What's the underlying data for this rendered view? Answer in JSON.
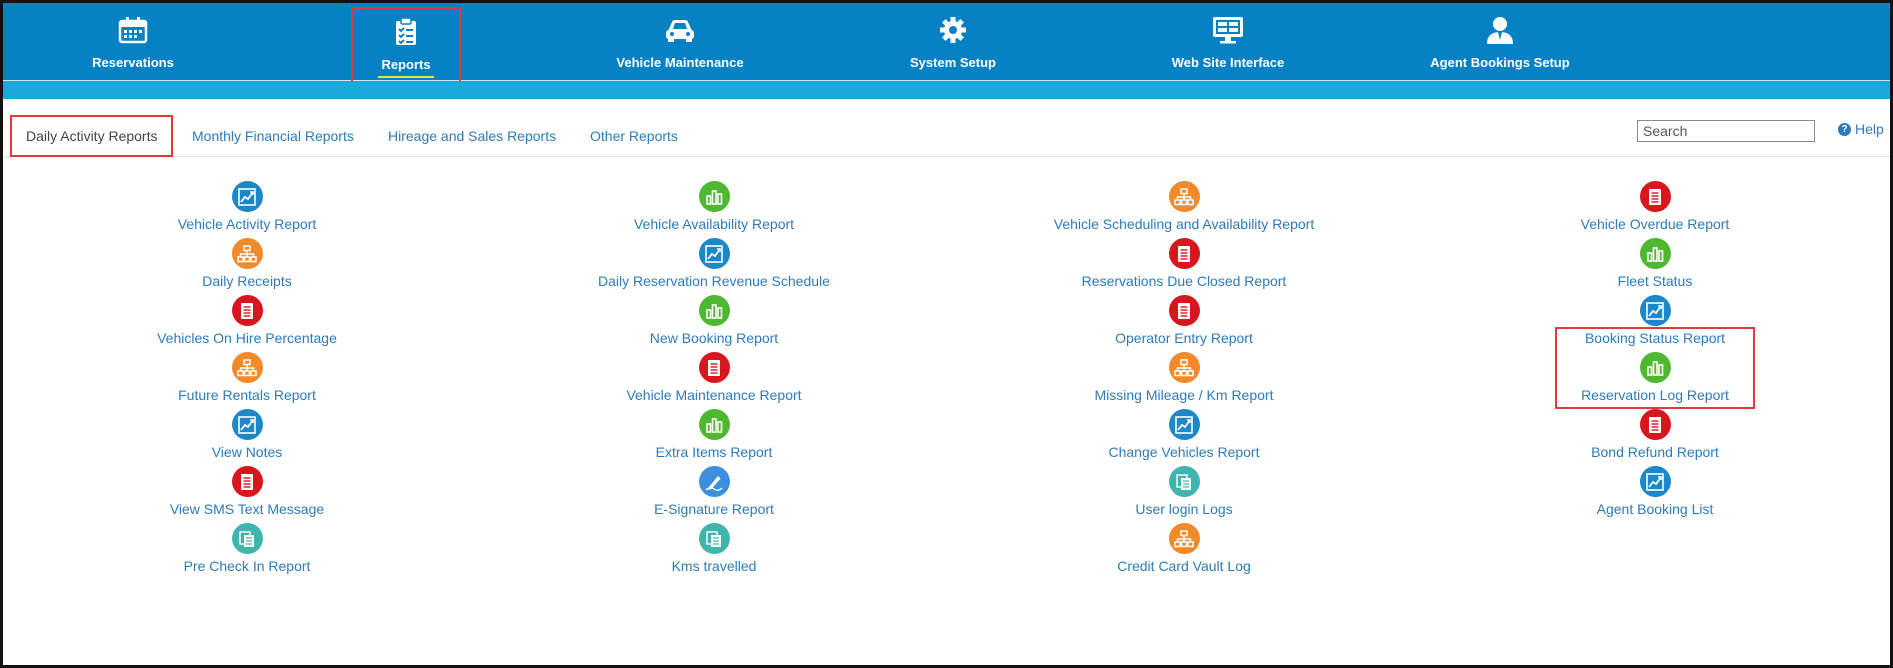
{
  "nav": {
    "items": [
      {
        "label": "Reservations",
        "icon": "calendar-icon",
        "active": false
      },
      {
        "label": "Reports",
        "icon": "checklist-icon",
        "active": true
      },
      {
        "label": "Vehicle Maintenance",
        "icon": "car-icon",
        "active": false
      },
      {
        "label": "System Setup",
        "icon": "gear-icon",
        "active": false
      },
      {
        "label": "Web Site Interface",
        "icon": "monitor-icon",
        "active": false
      },
      {
        "label": "Agent Bookings Setup",
        "icon": "agent-icon",
        "active": false
      }
    ]
  },
  "tabs": {
    "items": [
      {
        "label": "Daily Activity Reports",
        "active": true
      },
      {
        "label": "Monthly Financial Reports",
        "active": false
      },
      {
        "label": "Hireage and Sales Reports",
        "active": false
      },
      {
        "label": "Other Reports",
        "active": false
      }
    ],
    "search_placeholder": "Search",
    "help_label": "Help"
  },
  "colors": {
    "nav_bg": "#0581c4",
    "band": "#18a8dc",
    "link": "#2d7bb8",
    "highlight": "#e13a3a"
  },
  "reports": {
    "columns": [
      [
        {
          "label": "Vehicle Activity Report",
          "icon": "trend-chart-icon",
          "color": "blue"
        },
        {
          "label": "Daily Receipts",
          "icon": "hierarchy-icon",
          "color": "orange"
        },
        {
          "label": "Vehicles On Hire Percentage",
          "icon": "document-icon",
          "color": "red"
        },
        {
          "label": "Future Rentals Report",
          "icon": "hierarchy-icon",
          "color": "orange"
        },
        {
          "label": "View Notes",
          "icon": "trend-chart-icon",
          "color": "blue"
        },
        {
          "label": "View SMS Text Message",
          "icon": "document-icon",
          "color": "red"
        },
        {
          "label": "Pre Check In Report",
          "icon": "documents-icon",
          "color": "teal"
        }
      ],
      [
        {
          "label": "Vehicle Availability Report",
          "icon": "bar-chart-icon",
          "color": "green"
        },
        {
          "label": "Daily Reservation Revenue Schedule",
          "icon": "trend-chart-icon",
          "color": "blue"
        },
        {
          "label": "New Booking Report",
          "icon": "bar-chart-icon",
          "color": "green"
        },
        {
          "label": "Vehicle Maintenance Report",
          "icon": "document-icon",
          "color": "red"
        },
        {
          "label": "Extra Items Report",
          "icon": "bar-chart-icon",
          "color": "green"
        },
        {
          "label": "E-Signature Report",
          "icon": "pen-icon",
          "color": "sky"
        },
        {
          "label": "Kms travelled",
          "icon": "documents-icon",
          "color": "teal"
        }
      ],
      [
        {
          "label": "Vehicle Scheduling and Availability Report",
          "icon": "hierarchy-icon",
          "color": "orange"
        },
        {
          "label": "Reservations Due Closed Report",
          "icon": "document-icon",
          "color": "red"
        },
        {
          "label": "Operator Entry Report",
          "icon": "document-icon",
          "color": "red"
        },
        {
          "label": "Missing Mileage / Km Report",
          "icon": "hierarchy-icon",
          "color": "orange"
        },
        {
          "label": "Change Vehicles Report",
          "icon": "trend-chart-icon",
          "color": "blue"
        },
        {
          "label": "User login Logs",
          "icon": "documents-icon",
          "color": "teal"
        },
        {
          "label": "Credit Card Vault Log",
          "icon": "hierarchy-icon",
          "color": "orange"
        }
      ],
      [
        {
          "label": "Vehicle Overdue Report",
          "icon": "document-icon",
          "color": "red"
        },
        {
          "label": "Fleet Status",
          "icon": "bar-chart-icon",
          "color": "green"
        },
        {
          "label": "Booking Status Report",
          "icon": "trend-chart-icon",
          "color": "blue"
        },
        {
          "label": "Reservation Log Report",
          "icon": "bar-chart-icon",
          "color": "green",
          "highlight": true
        },
        {
          "label": "Bond Refund Report",
          "icon": "document-icon",
          "color": "red"
        },
        {
          "label": "Agent Booking List",
          "icon": "trend-chart-icon",
          "color": "blue"
        }
      ]
    ]
  }
}
